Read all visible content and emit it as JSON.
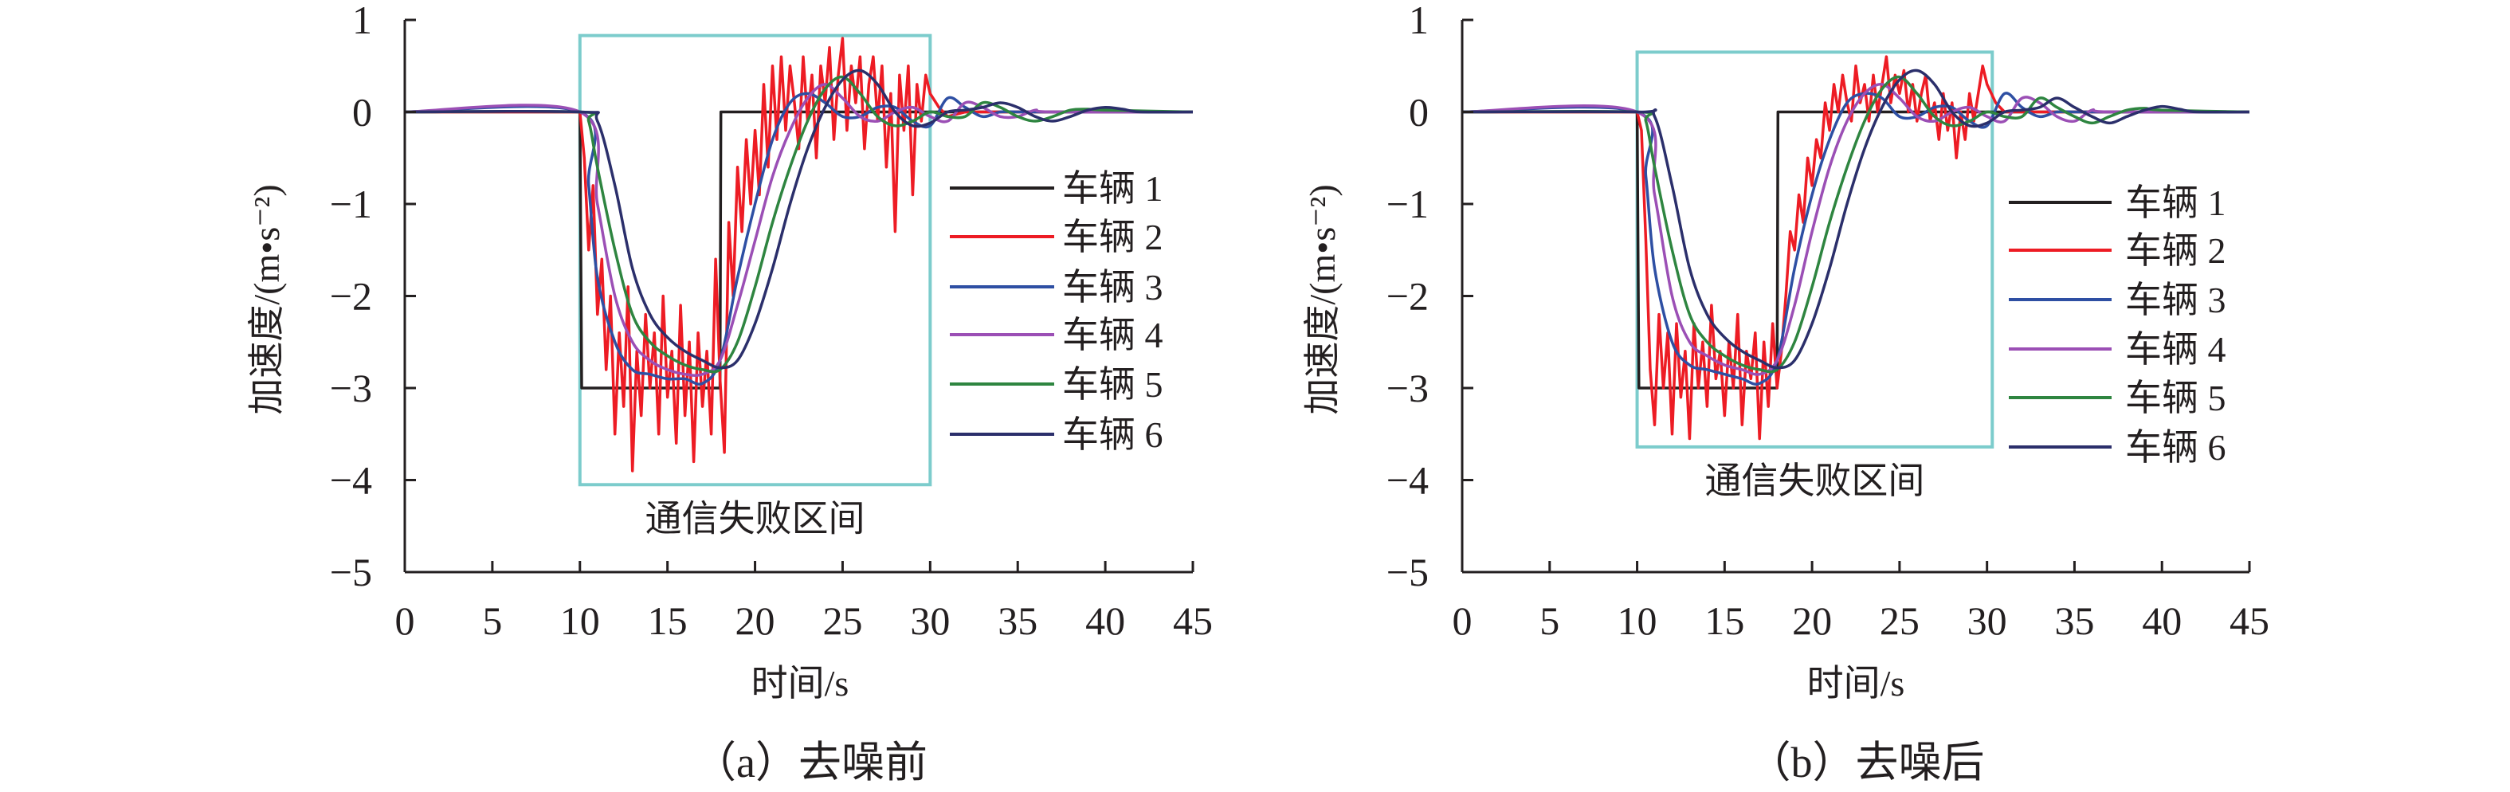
{
  "chart_data": [
    {
      "type": "line",
      "title": "",
      "caption": "（a）去噪前",
      "xlabel": "时间/s",
      "ylabel": "加速度/(m•s⁻²)",
      "xlim": [
        0,
        45
      ],
      "ylim": [
        -5,
        1
      ],
      "xticks": [
        0,
        5,
        10,
        15,
        20,
        25,
        30,
        35,
        40,
        45
      ],
      "yticks": [
        1,
        0,
        -1,
        -2,
        -3,
        -4,
        -5
      ],
      "ytick_labels": [
        "1",
        "0",
        "−1",
        "−2",
        "−3",
        "−4",
        "−5"
      ],
      "grid": false,
      "legend_position": "right",
      "annotation": {
        "text": "通信失败区间",
        "x_range": [
          10,
          30
        ],
        "y_range": [
          -4.05,
          0.83
        ],
        "color": "#7ccccc"
      },
      "series": [
        {
          "name": "车辆 1",
          "color": "#231f20",
          "smooth": false,
          "x": [
            0,
            10,
            10.1,
            18,
            18.05,
            45
          ],
          "y": [
            0,
            0,
            -3,
            -3,
            0,
            0
          ]
        },
        {
          "name": "车辆 2",
          "color": "#ed1c24",
          "smooth": false,
          "x": [
            0,
            10,
            10.25,
            10.5,
            10.75,
            11,
            11.25,
            11.5,
            11.75,
            12,
            12.25,
            12.5,
            12.75,
            13,
            13.25,
            13.5,
            13.75,
            14,
            14.25,
            14.5,
            14.75,
            15,
            15.25,
            15.5,
            15.75,
            16,
            16.25,
            16.5,
            16.75,
            17,
            17.25,
            17.5,
            17.75,
            18,
            18.25,
            18.5,
            18.75,
            19,
            19.25,
            19.5,
            19.75,
            20,
            20.25,
            20.5,
            20.75,
            21,
            21.25,
            21.5,
            21.75,
            22,
            22.25,
            22.5,
            22.75,
            23,
            23.25,
            23.5,
            23.75,
            24,
            24.25,
            24.5,
            24.75,
            25,
            25.25,
            25.5,
            25.75,
            26,
            26.25,
            26.5,
            26.75,
            27,
            27.25,
            27.5,
            27.75,
            28,
            28.25,
            28.5,
            28.75,
            29,
            29.25,
            29.5,
            29.75,
            30,
            30.5,
            31,
            32,
            45
          ],
          "y": [
            0,
            0,
            -0.5,
            -1.5,
            -0.8,
            -2.2,
            -1.6,
            -2.8,
            -2.0,
            -3.5,
            -2.4,
            -3.2,
            -1.9,
            -3.9,
            -2.6,
            -3.3,
            -2.2,
            -3.0,
            -2.4,
            -3.5,
            -2.0,
            -3.1,
            -2.6,
            -3.6,
            -2.1,
            -3.3,
            -2.5,
            -3.8,
            -2.4,
            -3.2,
            -2.6,
            -3.5,
            -1.6,
            -2.9,
            -3.7,
            -1.2,
            -2.0,
            -0.6,
            -1.3,
            -0.3,
            -1.0,
            -0.2,
            -0.9,
            0.3,
            -0.6,
            0.5,
            -0.3,
            0.6,
            -0.2,
            0.5,
            0.1,
            -0.4,
            0.6,
            -0.1,
            0.4,
            -0.5,
            0.5,
            0.1,
            0.7,
            -0.3,
            0.4,
            0.8,
            -0.2,
            0.5,
            0.1,
            0.6,
            -0.4,
            0.3,
            0.6,
            -0.1,
            0.5,
            -0.6,
            0.2,
            -1.3,
            0.4,
            -0.2,
            0.5,
            -0.9,
            0.3,
            -0.1,
            0.4,
            0.2,
            0.05,
            -0.05,
            0,
            0
          ]
        },
        {
          "name": "车辆 3",
          "color": "#2e4fa3",
          "smooth": true,
          "x": [
            0,
            10,
            10.5,
            11,
            12,
            13,
            14,
            15,
            16,
            17,
            18,
            19,
            20,
            21,
            22,
            23,
            24,
            25,
            26,
            27,
            28,
            29,
            30,
            31,
            32,
            33,
            34,
            35,
            36,
            45
          ],
          "y": [
            0,
            0,
            -0.8,
            -1.8,
            -2.5,
            -2.8,
            -2.85,
            -2.9,
            -2.9,
            -2.95,
            -2.7,
            -1.8,
            -1.0,
            -0.3,
            0.1,
            0.2,
            0.1,
            -0.05,
            -0.05,
            0.05,
            0.05,
            -0.1,
            -0.15,
            0.15,
            0.05,
            -0.05,
            0,
            0,
            0,
            0
          ]
        },
        {
          "name": "车辆 4",
          "color": "#9b4fb5",
          "smooth": true,
          "x": [
            0,
            10,
            11,
            12,
            13,
            14,
            15,
            16,
            17,
            18,
            19,
            20,
            21,
            22,
            23,
            24,
            25,
            26,
            27,
            28,
            29,
            30,
            31,
            32,
            33,
            34,
            35,
            36,
            37,
            45
          ],
          "y": [
            0,
            0,
            -1.0,
            -2.0,
            -2.5,
            -2.7,
            -2.8,
            -2.85,
            -2.85,
            -2.7,
            -2.1,
            -1.4,
            -0.7,
            -0.2,
            0.15,
            0.3,
            0.15,
            -0.05,
            -0.1,
            0,
            0.05,
            -0.05,
            -0.1,
            0.1,
            0.05,
            -0.05,
            -0.05,
            0.02,
            0,
            0
          ]
        },
        {
          "name": "车辆 5",
          "color": "#2e8540",
          "smooth": true,
          "x": [
            0,
            10,
            10.5,
            11,
            12,
            13,
            14,
            15,
            16,
            17,
            18,
            19,
            20,
            21,
            22,
            23,
            24,
            25,
            26,
            27,
            28,
            29,
            30,
            31,
            32,
            33,
            34,
            35,
            36,
            37,
            38,
            39,
            40,
            45
          ],
          "y": [
            0,
            0,
            -0.1,
            -0.6,
            -1.5,
            -2.2,
            -2.5,
            -2.65,
            -2.75,
            -2.8,
            -2.8,
            -2.5,
            -1.9,
            -1.2,
            -0.6,
            -0.1,
            0.25,
            0.38,
            0.2,
            -0.05,
            -0.15,
            -0.1,
            0,
            -0.05,
            -0.05,
            0.1,
            0.05,
            -0.05,
            -0.1,
            -0.05,
            0.02,
            0.03,
            0.02,
            0
          ]
        },
        {
          "name": "车辆 6",
          "color": "#2b2f6b",
          "smooth": true,
          "x": [
            0,
            10,
            11,
            12,
            13,
            14,
            15,
            16,
            17,
            18,
            19,
            20,
            21,
            22,
            23,
            24,
            25,
            26,
            27,
            28,
            29,
            30,
            31,
            32,
            33,
            34,
            35,
            36,
            37,
            38,
            39,
            40,
            41,
            42,
            45
          ],
          "y": [
            0,
            0,
            -0.1,
            -0.8,
            -1.7,
            -2.2,
            -2.45,
            -2.6,
            -2.7,
            -2.78,
            -2.7,
            -2.3,
            -1.7,
            -1.0,
            -0.4,
            0.05,
            0.35,
            0.45,
            0.3,
            0,
            -0.15,
            -0.12,
            0,
            0.02,
            0.05,
            0.1,
            0.05,
            -0.05,
            -0.1,
            -0.05,
            0.02,
            0.05,
            0.03,
            0,
            0
          ]
        }
      ]
    },
    {
      "type": "line",
      "title": "",
      "caption": "（b）去噪后",
      "xlabel": "时间/s",
      "ylabel": "加速度/(m•s⁻²)",
      "xlim": [
        0,
        45
      ],
      "ylim": [
        -5,
        1
      ],
      "xticks": [
        0,
        5,
        10,
        15,
        20,
        25,
        30,
        35,
        40,
        45
      ],
      "yticks": [
        1,
        0,
        -1,
        -2,
        -3,
        -4,
        -5
      ],
      "ytick_labels": [
        "1",
        "0",
        "−1",
        "−2",
        "−3",
        "−4",
        "−5"
      ],
      "grid": false,
      "legend_position": "right",
      "annotation": {
        "text": "通信失败区间",
        "x_range": [
          10,
          30.3
        ],
        "y_range": [
          -3.64,
          0.65
        ],
        "color": "#7ccccc"
      },
      "series": [
        {
          "name": "车辆 1",
          "color": "#231f20",
          "smooth": false,
          "x": [
            0,
            10,
            10.1,
            18,
            18.05,
            45
          ],
          "y": [
            0,
            0,
            -3,
            -3,
            0,
            0
          ]
        },
        {
          "name": "车辆 2",
          "color": "#ed1c24",
          "smooth": false,
          "x": [
            0,
            10,
            10.25,
            10.5,
            10.75,
            11,
            11.25,
            11.5,
            11.75,
            12,
            12.25,
            12.5,
            12.75,
            13,
            13.25,
            13.5,
            13.75,
            14,
            14.25,
            14.5,
            14.75,
            15,
            15.25,
            15.5,
            15.75,
            16,
            16.25,
            16.5,
            16.75,
            17,
            17.25,
            17.5,
            17.75,
            18,
            18.25,
            18.5,
            18.75,
            19,
            19.25,
            19.5,
            19.75,
            20,
            20.25,
            20.5,
            20.75,
            21,
            21.25,
            21.5,
            21.75,
            22,
            22.25,
            22.5,
            22.75,
            23,
            23.25,
            23.5,
            23.75,
            24,
            24.25,
            24.5,
            24.75,
            25,
            25.25,
            25.5,
            25.75,
            26,
            26.25,
            26.5,
            26.75,
            27,
            27.25,
            27.5,
            27.75,
            28,
            28.25,
            28.5,
            28.75,
            29,
            29.25,
            29.5,
            29.75,
            30,
            30.5,
            31,
            32,
            45
          ],
          "y": [
            0,
            0,
            -0.2,
            -1.4,
            -2.8,
            -3.4,
            -2.2,
            -3.0,
            -2.4,
            -3.5,
            -2.3,
            -3.1,
            -2.6,
            -3.55,
            -2.3,
            -3.0,
            -2.5,
            -3.2,
            -2.1,
            -2.9,
            -2.6,
            -3.3,
            -2.5,
            -3.0,
            -2.2,
            -3.4,
            -2.6,
            -2.9,
            -2.4,
            -3.55,
            -2.5,
            -3.2,
            -2.3,
            -3.0,
            -2.6,
            -2.0,
            -1.3,
            -1.5,
            -0.9,
            -1.2,
            -0.5,
            -0.8,
            -0.3,
            -0.5,
            0.1,
            -0.2,
            0.3,
            0.0,
            0.4,
            0.1,
            -0.1,
            0.5,
            0.1,
            0.3,
            -0.1,
            0.4,
            0.0,
            0.3,
            0.6,
            0.1,
            0.4,
            0.2,
            0.45,
            0.0,
            0.3,
            -0.1,
            0.2,
            0.4,
            -0.1,
            0.1,
            -0.3,
            0.2,
            -0.2,
            0.1,
            -0.5,
            0.0,
            -0.3,
            0.2,
            -0.1,
            0.2,
            0.5,
            0.3,
            0.1,
            0,
            0,
            0
          ]
        },
        {
          "name": "车辆 3",
          "color": "#2e4fa3",
          "smooth": true,
          "x": [
            0,
            10,
            10.5,
            11,
            12,
            13,
            14,
            15,
            16,
            17,
            18,
            19,
            20,
            21,
            22,
            23,
            24,
            25,
            26,
            27,
            28,
            29,
            30,
            31,
            32,
            33,
            34,
            35,
            36,
            45
          ],
          "y": [
            0,
            0,
            -0.7,
            -1.7,
            -2.5,
            -2.75,
            -2.8,
            -2.85,
            -2.9,
            -2.95,
            -2.7,
            -1.7,
            -0.9,
            -0.3,
            0.1,
            0.2,
            0.15,
            -0.05,
            -0.05,
            0.05,
            0.05,
            -0.1,
            -0.15,
            0.2,
            0.05,
            -0.05,
            0,
            0,
            0,
            0
          ]
        },
        {
          "name": "车辆 4",
          "color": "#9b4fb5",
          "smooth": true,
          "x": [
            0,
            10,
            11,
            12,
            13,
            14,
            15,
            16,
            17,
            18,
            19,
            20,
            21,
            22,
            23,
            24,
            25,
            26,
            27,
            28,
            29,
            30,
            31,
            32,
            33,
            34,
            35,
            36,
            37,
            45
          ],
          "y": [
            0,
            0,
            -0.9,
            -2.0,
            -2.5,
            -2.65,
            -2.75,
            -2.8,
            -2.85,
            -2.7,
            -2.1,
            -1.3,
            -0.6,
            -0.1,
            0.2,
            0.3,
            0.15,
            -0.05,
            -0.1,
            0,
            0.05,
            -0.05,
            -0.1,
            0.15,
            0.1,
            -0.05,
            -0.1,
            0.02,
            0,
            0
          ]
        },
        {
          "name": "车辆 5",
          "color": "#2e8540",
          "smooth": true,
          "x": [
            0,
            10,
            10.5,
            11,
            12,
            13,
            14,
            15,
            16,
            17,
            18,
            19,
            20,
            21,
            22,
            23,
            24,
            25,
            26,
            27,
            28,
            29,
            30,
            31,
            32,
            33,
            34,
            35,
            36,
            37,
            38,
            39,
            40,
            45
          ],
          "y": [
            0,
            0,
            -0.1,
            -0.6,
            -1.5,
            -2.2,
            -2.5,
            -2.65,
            -2.75,
            -2.8,
            -2.8,
            -2.5,
            -1.9,
            -1.2,
            -0.6,
            -0.1,
            0.25,
            0.38,
            0.2,
            -0.05,
            -0.15,
            -0.1,
            0,
            -0.05,
            -0.05,
            0.15,
            0.05,
            -0.05,
            -0.12,
            -0.05,
            0.02,
            0.04,
            0.02,
            0
          ]
        },
        {
          "name": "车辆 6",
          "color": "#2b2f6b",
          "smooth": true,
          "x": [
            0,
            10,
            11,
            12,
            13,
            14,
            15,
            16,
            17,
            18,
            19,
            20,
            21,
            22,
            23,
            24,
            25,
            26,
            27,
            28,
            29,
            30,
            31,
            32,
            33,
            34,
            35,
            36,
            37,
            38,
            39,
            40,
            41,
            42,
            45
          ],
          "y": [
            0,
            0,
            -0.05,
            -0.8,
            -1.7,
            -2.2,
            -2.45,
            -2.6,
            -2.7,
            -2.78,
            -2.7,
            -2.3,
            -1.7,
            -1.0,
            -0.4,
            0.05,
            0.35,
            0.45,
            0.3,
            0,
            -0.15,
            -0.12,
            0,
            0.02,
            0.05,
            0.15,
            0.05,
            -0.05,
            -0.12,
            -0.05,
            0.02,
            0.06,
            0.03,
            0,
            0
          ]
        }
      ]
    }
  ]
}
